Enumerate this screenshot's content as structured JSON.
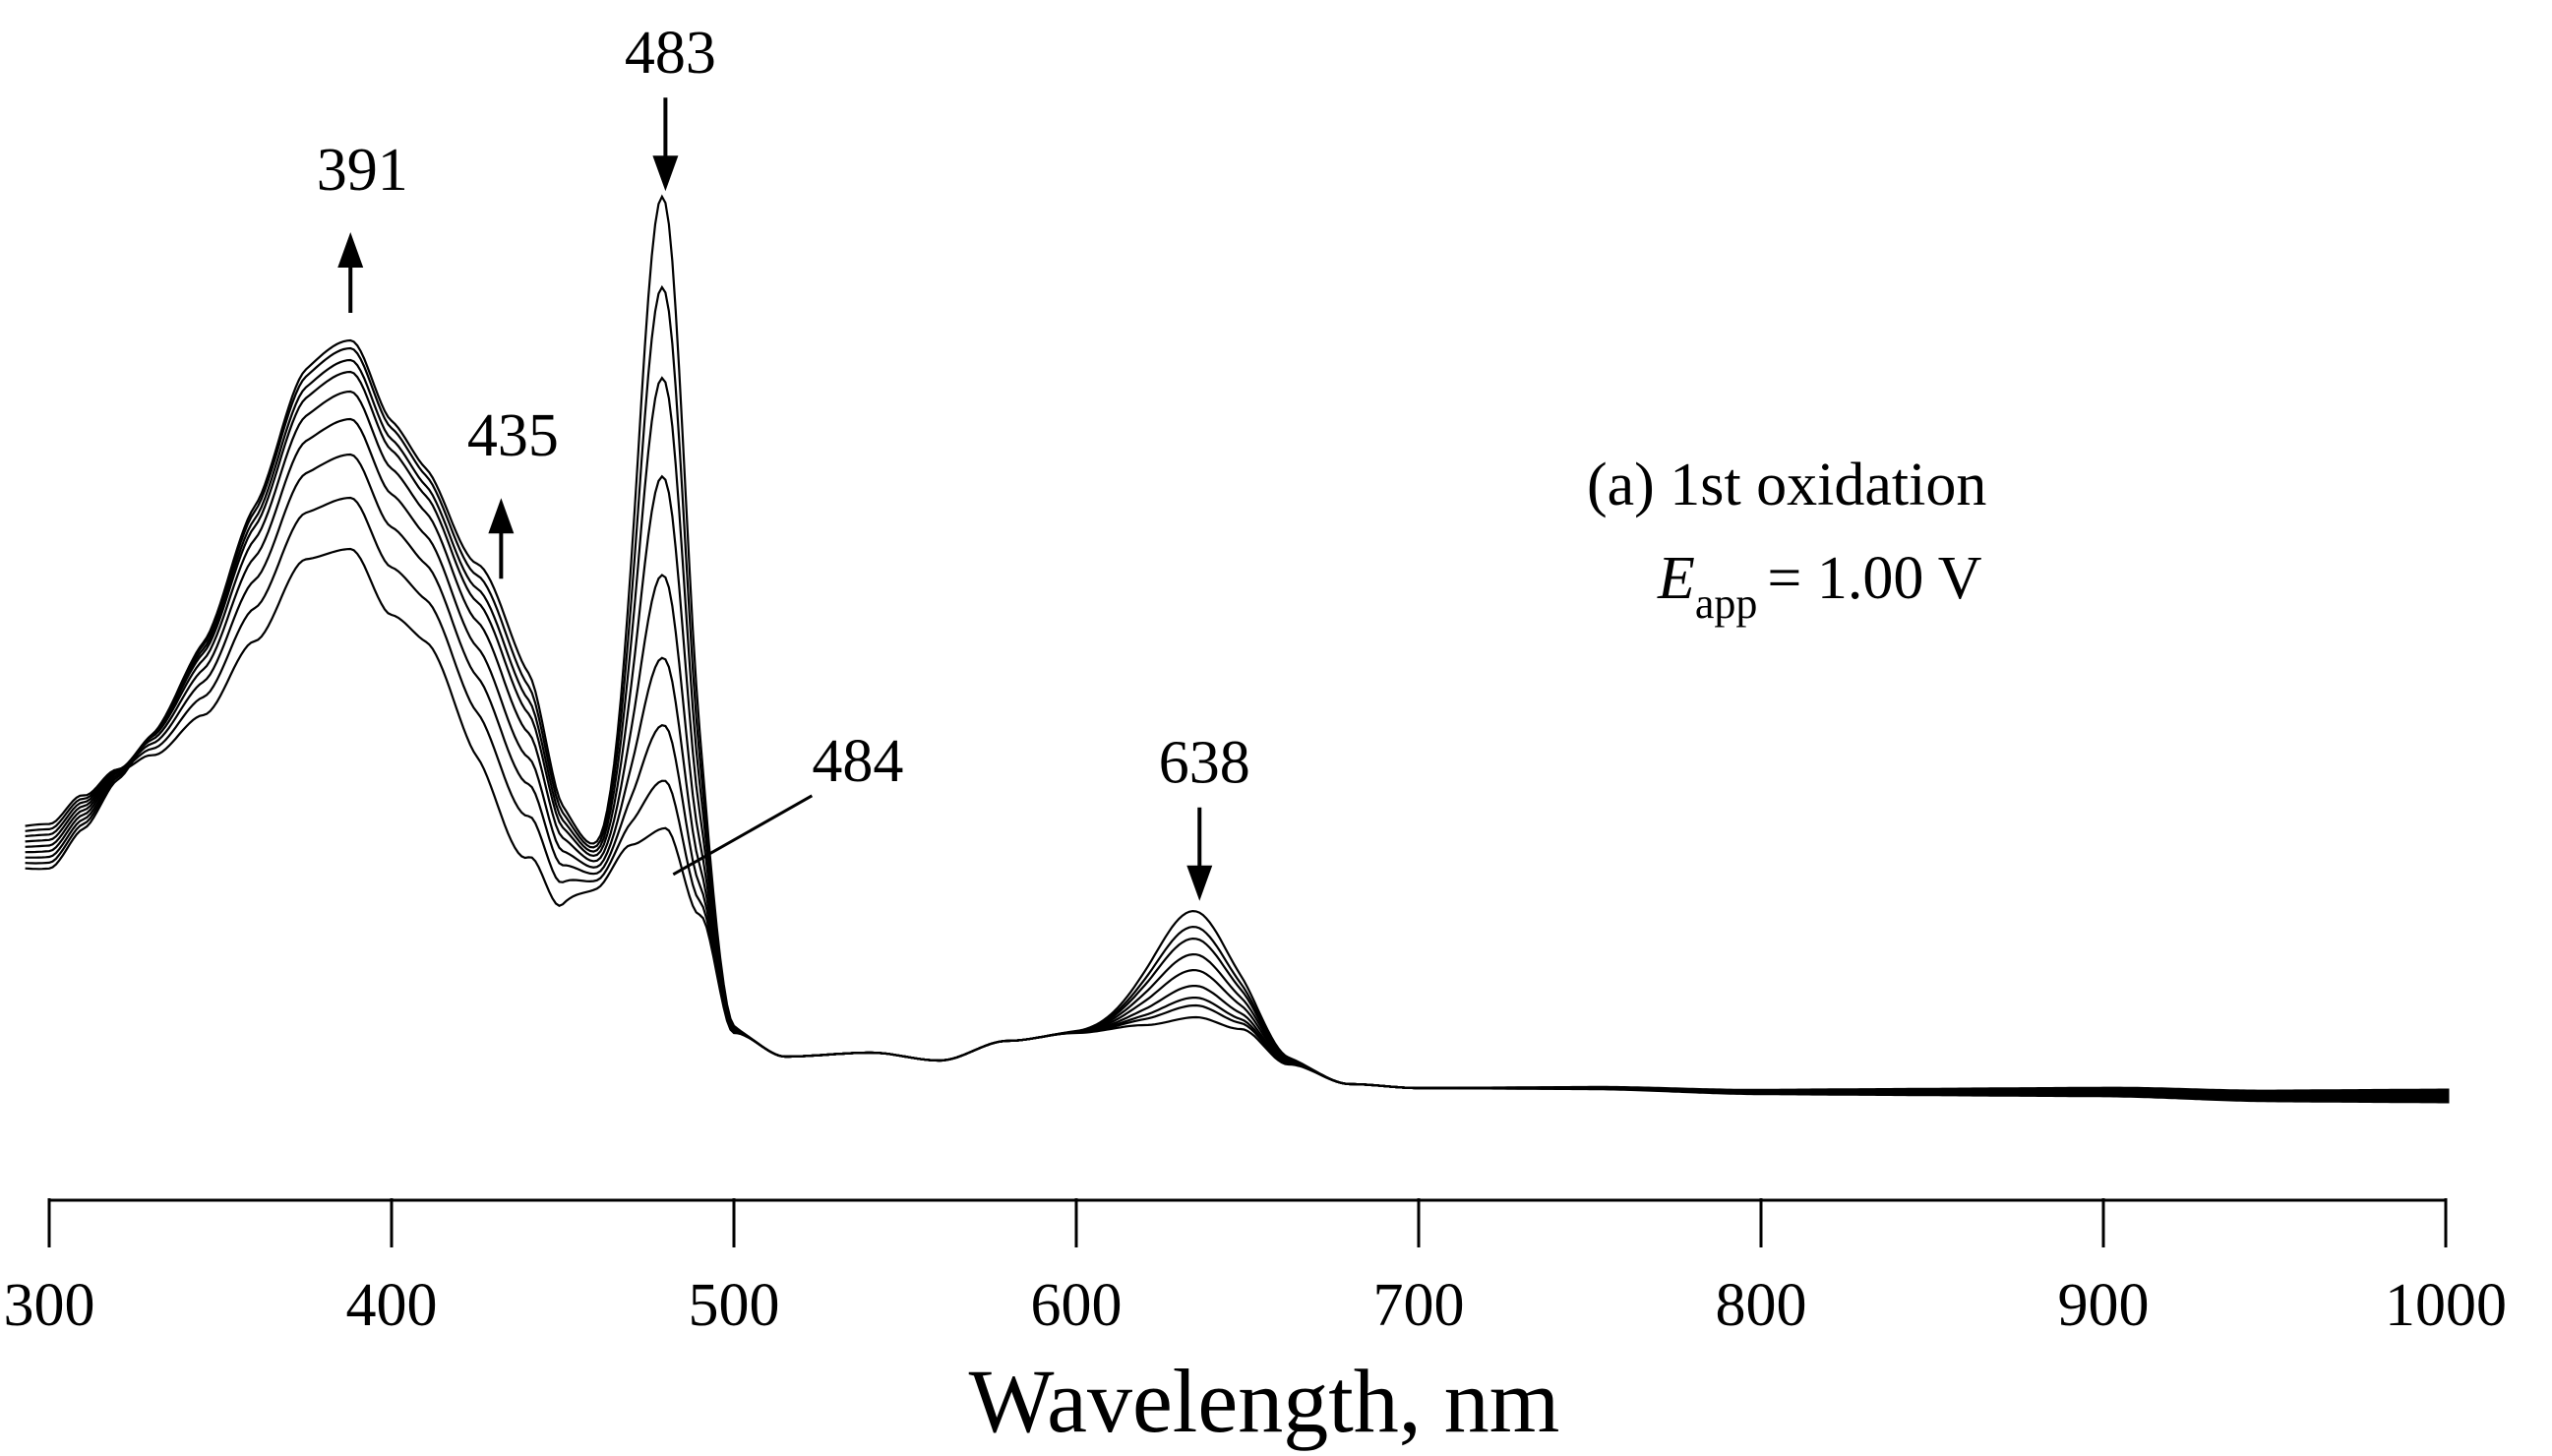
{
  "chart_data": {
    "type": "line",
    "title": "",
    "xlabel": "Wavelength, nm",
    "ylabel": "",
    "xlim": [
      300,
      1000
    ],
    "xticks": [
      300,
      400,
      500,
      600,
      700,
      800,
      900,
      1000
    ],
    "yaxis_visible": false,
    "grid": false,
    "legend": {
      "position": "top-right",
      "line1": "(a) 1st oxidation",
      "E_symbol": "E",
      "E_subscript": "app",
      "E_value": "= 1.00 V"
    },
    "peaks": [
      {
        "label": "391",
        "wavelength": 388,
        "trend": "up"
      },
      {
        "label": "435",
        "wavelength": 432,
        "trend": "up"
      },
      {
        "label": "483",
        "wavelength": 480,
        "trend": "down"
      },
      {
        "label": "484",
        "wavelength": 484,
        "trend": "none",
        "note": "isosbestic leader line"
      },
      {
        "label": "638",
        "wavelength": 636,
        "trend": "down"
      }
    ],
    "base_spectrum": {
      "x": [
        293,
        300,
        310,
        320,
        330,
        345,
        360,
        375,
        388,
        400,
        410,
        425,
        440,
        450,
        460,
        470,
        480,
        490,
        500,
        515,
        540,
        560,
        580,
        600,
        620,
        635,
        648,
        662,
        680,
        700,
        750,
        800,
        850,
        900,
        950,
        1000
      ],
      "y": [
        0.47,
        0.47,
        0.55,
        0.63,
        0.68,
        0.78,
        0.95,
        1.14,
        1.16,
        1.0,
        0.96,
        0.8,
        0.62,
        0.42,
        0.39,
        0.48,
        0.52,
        0.3,
        0.0,
        -0.06,
        -0.05,
        -0.07,
        -0.02,
        0.0,
        0.02,
        0.04,
        0.01,
        -0.08,
        -0.13,
        -0.14,
        -0.14,
        -0.15,
        -0.15,
        -0.15,
        -0.16,
        -0.16
      ]
    },
    "series": [
      {
        "name": "t0",
        "peak_391": 0.07,
        "peak_435": -0.2,
        "peak_483": 0.0,
        "peak_638": 0.27
      },
      {
        "name": "t1",
        "peak_391": 0.2,
        "peak_435": -0.12,
        "peak_483": 0.12,
        "peak_638": 0.23
      },
      {
        "name": "t2",
        "peak_391": 0.31,
        "peak_435": -0.06,
        "peak_483": 0.26,
        "peak_638": 0.2
      },
      {
        "name": "t3",
        "peak_391": 0.4,
        "peak_435": -0.01,
        "peak_483": 0.43,
        "peak_638": 0.16
      },
      {
        "name": "t4",
        "peak_391": 0.47,
        "peak_435": 0.04,
        "peak_483": 0.64,
        "peak_638": 0.12
      },
      {
        "name": "t5",
        "peak_391": 0.52,
        "peak_435": 0.08,
        "peak_483": 0.89,
        "peak_638": 0.08
      },
      {
        "name": "t6",
        "peak_391": 0.55,
        "peak_435": 0.11,
        "peak_483": 1.14,
        "peak_638": 0.05
      },
      {
        "name": "t7",
        "peak_391": 0.58,
        "peak_435": 0.14,
        "peak_483": 1.37,
        "peak_638": 0.03
      },
      {
        "name": "t8",
        "peak_391": 0.6,
        "peak_435": 0.17,
        "peak_483": 1.6,
        "peak_638": 0.0
      }
    ],
    "colors": {
      "line": "#000000",
      "background": "#ffffff"
    }
  }
}
